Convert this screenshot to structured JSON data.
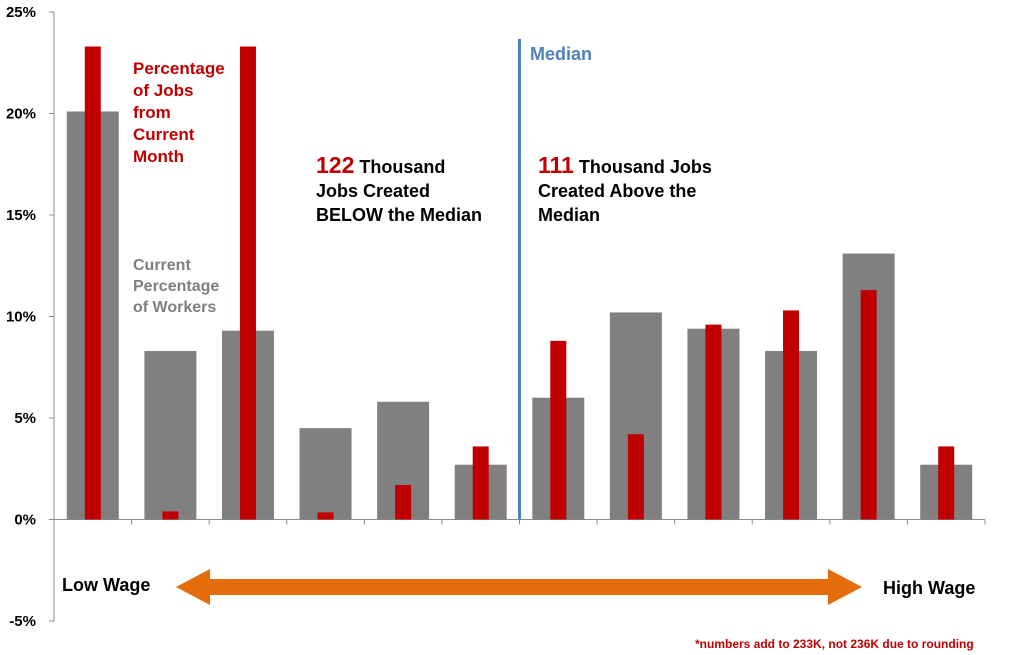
{
  "chart_data": {
    "type": "bar",
    "categories": [
      "",
      "",
      "",
      "",
      "",
      "",
      "",
      "",
      "",
      "",
      "",
      ""
    ],
    "series": [
      {
        "name": "Current Percentage of Workers",
        "color": "#808080",
        "values": [
          20.1,
          8.3,
          9.3,
          4.5,
          5.8,
          2.7,
          6.0,
          10.2,
          9.4,
          8.3,
          13.1,
          2.7
        ]
      },
      {
        "name": "Percentage of Jobs from Current Month",
        "color": "#c00000",
        "values": [
          23.3,
          0.4,
          23.3,
          0.35,
          1.7,
          3.6,
          8.8,
          4.2,
          9.6,
          10.3,
          11.3,
          3.6
        ]
      }
    ],
    "y_ticks": [
      "-5%",
      "0%",
      "5%",
      "10%",
      "15%",
      "20%",
      "25%"
    ],
    "ylim": [
      -5,
      25
    ],
    "median_line": {
      "between_categories": [
        6,
        7
      ],
      "label": "Median",
      "color": "#4f81bd"
    },
    "grid": false,
    "legend": "none"
  },
  "labels": {
    "red_series": [
      "Percentage",
      "of  Jobs",
      "from",
      "Current",
      "Month"
    ],
    "gray_series": [
      "Current",
      "Percentage",
      "of  Workers"
    ],
    "below": {
      "number": "122",
      "line1": "Thousand",
      "line2": "Jobs Created",
      "line3": "BELOW  the Median"
    },
    "above": {
      "number": "111",
      "line1": "Thousand  Jobs",
      "line2": "Created Above the",
      "line3": "Median"
    },
    "low_wage": "Low Wage",
    "high_wage": "High Wage",
    "footnote": "*numbers add to 233K, not 236K due to rounding"
  },
  "colors": {
    "arrow": "#e46c0a",
    "median": "#4f81bd",
    "red": "#c00000",
    "gray": "#808080"
  }
}
